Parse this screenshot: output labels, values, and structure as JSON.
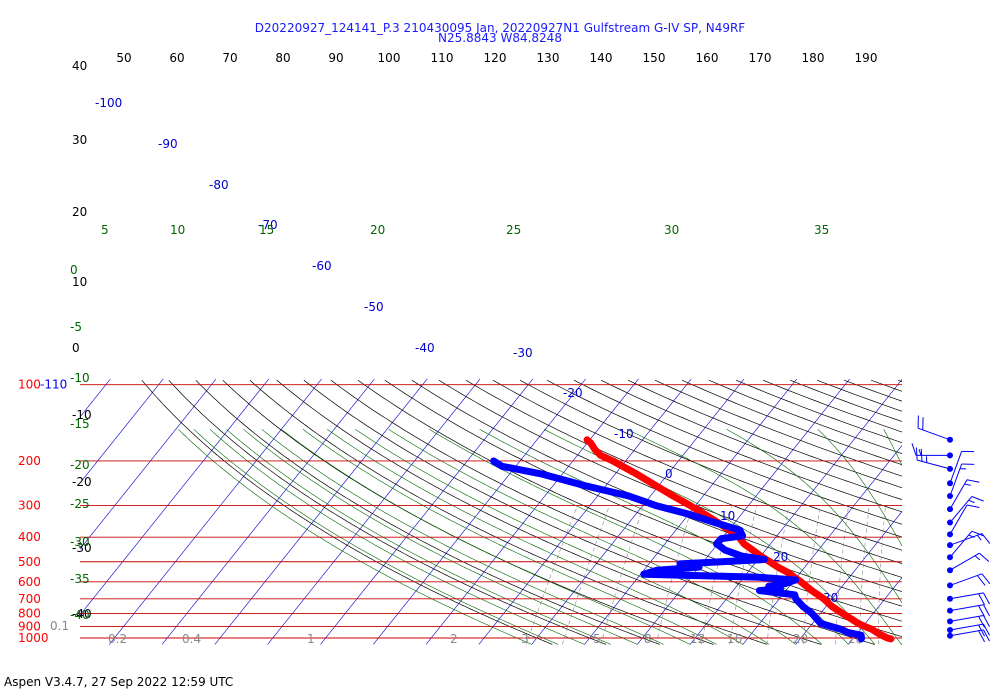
{
  "title_line1": "D20220927_124141_P.3 210430095 Jan, 20220927N1 Gulfstream G-IV SP, N49RF",
  "title_line2": "N25.8843 W84.8248",
  "footer": "Aspen V3.4.7, 27 Sep 2022  12:59 UTC",
  "colors": {
    "temperature": "#ff0000",
    "dewpoint": "#0000ff",
    "isobar": "#cc0000",
    "isotherm": "#0000cc",
    "dry_adiabat": "#000000",
    "moist_adiabat": "#006600",
    "mixing_ratio": "#888888",
    "wind_barb": "#0000ff"
  },
  "chart_data": {
    "type": "scatter",
    "diagram": "skew-T log-P",
    "grid": true,
    "pressure_labels": [
      "100-110",
      "200",
      "300",
      "400",
      "500",
      "600",
      "700",
      "800",
      "900",
      "1000"
    ],
    "top_axis_labels": [
      "50",
      "60",
      "70",
      "80",
      "90",
      "100",
      "110",
      "120",
      "130",
      "140",
      "150",
      "160",
      "170",
      "180",
      "190"
    ],
    "left_labels_black": [
      "40",
      "30",
      "20",
      "10",
      "0",
      "-10",
      "-20",
      "-30",
      "-40"
    ],
    "left_labels_green": [
      "0",
      "-5",
      "-10",
      "-15",
      "-20",
      "-25",
      "-30",
      "-35",
      "-40"
    ],
    "isotherm_labels": [
      "-100",
      "-90",
      "-80",
      "-70",
      "-60",
      "-50",
      "-40",
      "-30",
      "-20",
      "-10",
      "0",
      "10",
      "20",
      "30"
    ],
    "moist_adiabat_labels": [
      "5",
      "10",
      "15",
      "20",
      "25",
      "30",
      "35"
    ],
    "mixing_ratio_labels": [
      "0.1",
      "0.2",
      "0.4",
      "1",
      "2",
      "3",
      "5",
      "8",
      "12",
      "16",
      "20",
      "28",
      "40"
    ],
    "temperature": [
      {
        "p": 1008,
        "t": 27.2
      },
      {
        "p": 1000,
        "t": 26.4
      },
      {
        "p": 975,
        "t": 24.9
      },
      {
        "p": 950,
        "t": 23.5
      },
      {
        "p": 925,
        "t": 22.2
      },
      {
        "p": 900,
        "t": 20.3
      },
      {
        "p": 875,
        "t": 18.6
      },
      {
        "p": 850,
        "t": 17.2
      },
      {
        "p": 800,
        "t": 14.2
      },
      {
        "p": 750,
        "t": 11.1
      },
      {
        "p": 700,
        "t": 8.4
      },
      {
        "p": 650,
        "t": 4.9
      },
      {
        "p": 600,
        "t": 1.5
      },
      {
        "p": 550,
        "t": -2.5
      },
      {
        "p": 525,
        "t": -5.1
      },
      {
        "p": 500,
        "t": -7.4
      },
      {
        "p": 475,
        "t": -10.0
      },
      {
        "p": 450,
        "t": -12.4
      },
      {
        "p": 425,
        "t": -15.0
      },
      {
        "p": 400,
        "t": -17.0
      },
      {
        "p": 375,
        "t": -19.9
      },
      {
        "p": 350,
        "t": -23.2
      },
      {
        "p": 325,
        "t": -26.9
      },
      {
        "p": 300,
        "t": -31.0
      },
      {
        "p": 275,
        "t": -35.7
      },
      {
        "p": 250,
        "t": -40.6
      },
      {
        "p": 225,
        "t": -46.0
      },
      {
        "p": 200,
        "t": -52.4
      },
      {
        "p": 190,
        "t": -55.6
      },
      {
        "p": 180,
        "t": -57.6
      },
      {
        "p": 170,
        "t": -59.3
      },
      {
        "p": 165,
        "t": -60.5
      }
    ],
    "dewpoint": [
      {
        "p": 1008,
        "t": 21.6
      },
      {
        "p": 1000,
        "t": 21.5
      },
      {
        "p": 975,
        "t": 21.0
      },
      {
        "p": 950,
        "t": 18.0
      },
      {
        "p": 925,
        "t": 16.4
      },
      {
        "p": 900,
        "t": 13.9
      },
      {
        "p": 875,
        "t": 11.5
      },
      {
        "p": 850,
        "t": 10.5
      },
      {
        "p": 800,
        "t": 8.4
      },
      {
        "p": 750,
        "t": 5.6
      },
      {
        "p": 700,
        "t": 3.1
      },
      {
        "p": 675,
        "t": 2.3
      },
      {
        "p": 650,
        "t": -5.0
      },
      {
        "p": 640,
        "t": -1.3
      },
      {
        "p": 625,
        "t": -3.9
      },
      {
        "p": 610,
        "t": -1.2
      },
      {
        "p": 590,
        "t": 0.2
      },
      {
        "p": 575,
        "t": -7.5
      },
      {
        "p": 560,
        "t": -29.4
      },
      {
        "p": 540,
        "t": -27.5
      },
      {
        "p": 525,
        "t": -20.0
      },
      {
        "p": 510,
        "t": -24.1
      },
      {
        "p": 490,
        "t": -8.8
      },
      {
        "p": 475,
        "t": -13.6
      },
      {
        "p": 450,
        "t": -17.6
      },
      {
        "p": 425,
        "t": -20.2
      },
      {
        "p": 405,
        "t": -20.1
      },
      {
        "p": 395,
        "t": -16.5
      },
      {
        "p": 375,
        "t": -17.9
      },
      {
        "p": 350,
        "t": -23.8
      },
      {
        "p": 325,
        "t": -29.8
      },
      {
        "p": 300,
        "t": -37.5
      },
      {
        "p": 275,
        "t": -44.1
      },
      {
        "p": 250,
        "t": -54.1
      },
      {
        "p": 225,
        "t": -64.0
      },
      {
        "p": 210,
        "t": -72.6
      },
      {
        "p": 200,
        "t": -75.0
      }
    ],
    "wind_barbs": [
      {
        "p": 165,
        "dir": 290,
        "speed": 20
      },
      {
        "p": 190,
        "dir": 270,
        "speed": 15
      },
      {
        "p": 215,
        "dir": 285,
        "speed": 25
      },
      {
        "p": 245,
        "dir": 20,
        "speed": 10
      },
      {
        "p": 275,
        "dir": 20,
        "speed": 15
      },
      {
        "p": 310,
        "dir": 30,
        "speed": 15
      },
      {
        "p": 350,
        "dir": 40,
        "speed": 15
      },
      {
        "p": 390,
        "dir": 30,
        "speed": 10
      },
      {
        "p": 430,
        "dir": 70,
        "speed": 15
      },
      {
        "p": 480,
        "dir": 40,
        "speed": 15
      },
      {
        "p": 540,
        "dir": 60,
        "speed": 15
      },
      {
        "p": 620,
        "dir": 70,
        "speed": 20
      },
      {
        "p": 700,
        "dir": 80,
        "speed": 20
      },
      {
        "p": 780,
        "dir": 80,
        "speed": 20
      },
      {
        "p": 860,
        "dir": 80,
        "speed": 20
      },
      {
        "p": 930,
        "dir": 80,
        "speed": 20
      },
      {
        "p": 980,
        "dir": 80,
        "speed": 20
      }
    ]
  }
}
